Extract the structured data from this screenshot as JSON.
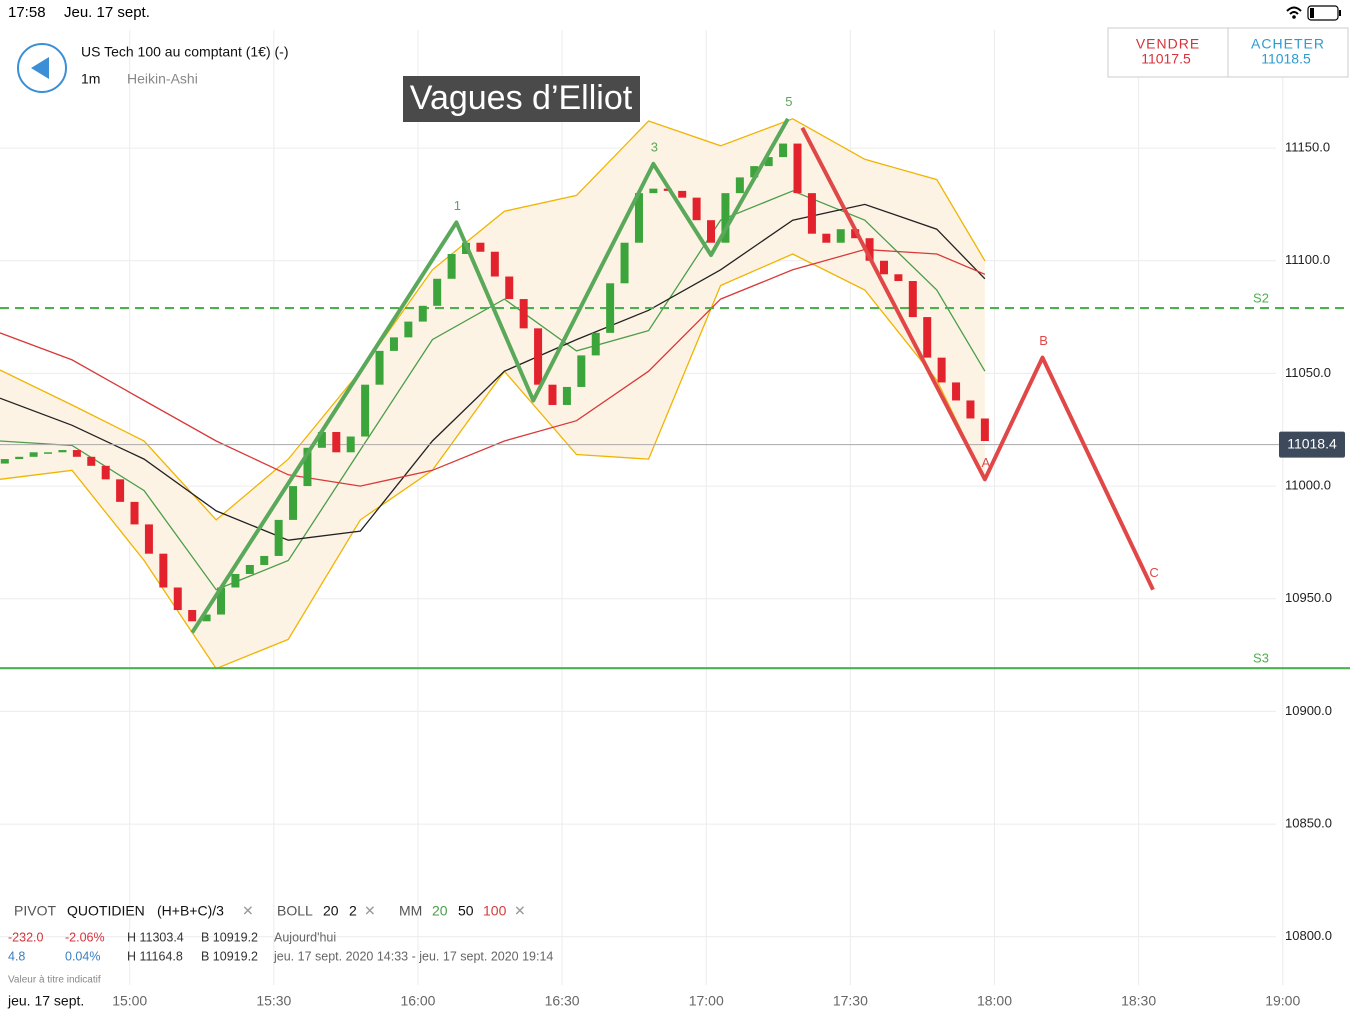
{
  "status_bar": {
    "time": "17:58",
    "date": "Jeu. 17 sept."
  },
  "header": {
    "title": "US Tech 100 au comptant (1€) (-)",
    "interval": "1m",
    "chart_style": "Heikin-Ashi",
    "banner": "Vagues d’Elliot"
  },
  "trade_buttons": [
    {
      "label": "VENDRE",
      "price": "11017.5"
    },
    {
      "label": "ACHETER",
      "price": "11018.5"
    }
  ],
  "indicators": {
    "pivot": [
      "PIVOT",
      "QUOTIDIEN",
      "(H+B+C)/3"
    ],
    "boll": [
      "BOLL",
      "20",
      "2"
    ],
    "mm": [
      "MM",
      "20",
      "50",
      "100"
    ]
  },
  "stats": [
    [
      "-232.0",
      "-2.06%",
      "H 11303.4",
      "B 10919.2",
      "Aujourd'hui"
    ],
    [
      "4.8",
      "0.04%",
      "H 11164.8",
      "B 10919.2",
      "jeu. 17 sept. 2020 14:33 - jeu. 17 sept. 2020 19:14"
    ]
  ],
  "note": "Valeur à titre indicatif",
  "chart_data": {
    "type": "candlestick",
    "date_label": "jeu. 17 sept.",
    "up_color": "#3ba43b",
    "down_color": "#e2222c",
    "grid": true,
    "xlim": [
      "14:33",
      "19:14"
    ],
    "ylim": [
      10778.6,
      11202.4
    ],
    "xticks": [
      "15:00",
      "15:30",
      "16:00",
      "16:30",
      "17:00",
      "17:30",
      "18:00",
      "18:30",
      "19:00"
    ],
    "yticks": [
      {
        "value": 11150,
        "label": "11150.0"
      },
      {
        "value": 11100,
        "label": "11100.0"
      },
      {
        "value": 11050,
        "label": "11050.0"
      },
      {
        "value": 11000,
        "label": "11000.0"
      },
      {
        "value": 10950,
        "label": "10950.0"
      },
      {
        "value": 10900,
        "label": "10900.0"
      },
      {
        "value": 10850,
        "label": "10850.0"
      },
      {
        "value": 10800,
        "label": "10800.0"
      }
    ],
    "x": [
      "14:34",
      "14:37",
      "14:40",
      "14:43",
      "14:46",
      "14:49",
      "14:52",
      "14:55",
      "14:58",
      "15:01",
      "15:04",
      "15:07",
      "15:10",
      "15:13",
      "15:16",
      "15:19",
      "15:22",
      "15:25",
      "15:28",
      "15:31",
      "15:34",
      "15:37",
      "15:40",
      "15:43",
      "15:46",
      "15:49",
      "15:52",
      "15:55",
      "15:58",
      "16:01",
      "16:04",
      "16:07",
      "16:10",
      "16:13",
      "16:16",
      "16:19",
      "16:22",
      "16:25",
      "16:28",
      "16:31",
      "16:34",
      "16:37",
      "16:40",
      "16:43",
      "16:46",
      "16:49",
      "16:52",
      "16:55",
      "16:58",
      "17:01",
      "17:04",
      "17:07",
      "17:10",
      "17:13",
      "17:16",
      "17:19",
      "17:22",
      "17:25",
      "17:28",
      "17:31",
      "17:34",
      "17:37",
      "17:40",
      "17:43",
      "17:46",
      "17:49",
      "17:52",
      "17:55",
      "17:58"
    ],
    "open": [
      11010,
      11012,
      11013,
      11015,
      11015,
      11016,
      11013,
      11009,
      11003,
      10993,
      10983,
      10970,
      10955,
      10945,
      10940,
      10943,
      10955,
      10961,
      10965,
      10969,
      10985,
      11000,
      11017,
      11024,
      11015,
      11022,
      11045,
      11060,
      11066,
      11073,
      11080,
      11092,
      11103,
      11108,
      11104,
      11093,
      11083,
      11070,
      11045,
      11036,
      11044,
      11058,
      11068,
      11090,
      11108,
      11130,
      11132,
      11131,
      11128,
      11118,
      11108,
      11130,
      11137,
      11142,
      11146,
      11152,
      11130,
      11112,
      11108,
      11114,
      11110,
      11100,
      11094,
      11091,
      11075,
      11057,
      11046,
      11038,
      11030
    ],
    "close": [
      11012,
      11013,
      11015,
      11015,
      11016,
      11013,
      11009,
      11003,
      10993,
      10983,
      10970,
      10955,
      10945,
      10940,
      10943,
      10955,
      10961,
      10965,
      10969,
      10985,
      11000,
      11017,
      11024,
      11015,
      11022,
      11045,
      11060,
      11066,
      11073,
      11080,
      11092,
      11103,
      11108,
      11104,
      11093,
      11083,
      11070,
      11045,
      11036,
      11044,
      11058,
      11068,
      11090,
      11108,
      11130,
      11132,
      11131,
      11128,
      11118,
      11108,
      11130,
      11137,
      11142,
      11146,
      11152,
      11130,
      11112,
      11108,
      11114,
      11110,
      11100,
      11094,
      11091,
      11075,
      11057,
      11046,
      11038,
      11030,
      11020
    ],
    "line_x": [
      "14:33",
      "14:48",
      "15:03",
      "15:18",
      "15:33",
      "15:48",
      "16:03",
      "16:18",
      "16:33",
      "16:48",
      "17:03",
      "17:18",
      "17:33",
      "17:48",
      "17:58"
    ],
    "bollinger": {
      "color": "#f0b400",
      "fill": "#fdf3e4",
      "upper": [
        11051.5,
        11036,
        11020,
        10985,
        11012,
        11051,
        11096,
        11122,
        11129,
        11162,
        11151,
        11163,
        11145,
        11136,
        11100
      ],
      "lower": [
        11003,
        11007,
        10967,
        10919,
        10932,
        10985,
        11007,
        11051,
        11014,
        11012,
        11089,
        11103,
        11087,
        11047,
        11003
      ]
    },
    "overlays": [
      {
        "color": "#4a9e4a",
        "values": [
          11020,
          11018,
          10998,
          10954,
          10967,
          11016,
          11065,
          11083,
          11060,
          11069,
          11118,
          11131,
          11118,
          11087,
          11051
        ]
      },
      {
        "color": "#222222",
        "values": [
          11039,
          11027,
          11012,
          10989,
          10976,
          10980,
          11020,
          11051,
          11065,
          11078,
          11096,
          11118,
          11125,
          11114,
          11092
        ]
      },
      {
        "color": "#d83a3a",
        "values": [
          11068,
          11056,
          11038,
          11020,
          11005,
          11000,
          11007,
          11020,
          11029,
          11051,
          11083,
          11096,
          11105,
          11103,
          11094
        ]
      }
    ],
    "levels": [
      {
        "label": "S2",
        "value": 11079,
        "color": "#4caf50",
        "dashed": true
      },
      {
        "label": "S3",
        "value": 10919.2,
        "color": "#4caf50",
        "dashed": false
      }
    ],
    "last_price": 11018.4,
    "waves": [
      {
        "color": "#5aa85a",
        "x": [
          "15:13",
          "16:08",
          "16:24",
          "16:49",
          "17:01",
          "17:17"
        ],
        "values": [
          10935,
          11117,
          11038,
          11143,
          11102.5,
          11163
        ],
        "labels": [
          null,
          "1",
          null,
          "3",
          null,
          "5"
        ]
      },
      {
        "color": "#e04848",
        "x": [
          "17:20",
          "17:58",
          "18:10",
          "18:33"
        ],
        "values": [
          11159,
          11003,
          11057,
          10954
        ],
        "labels": [
          null,
          "A",
          "B",
          "C"
        ]
      }
    ]
  }
}
